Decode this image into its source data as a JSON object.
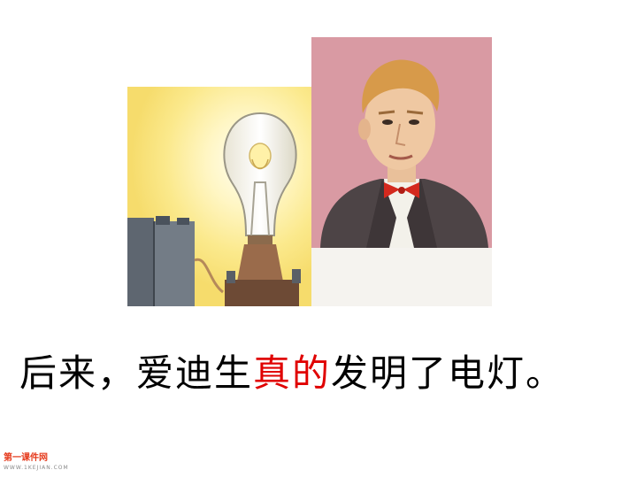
{
  "caption": {
    "before": "后来，爱迪生",
    "emphasis": "真的",
    "after": "发明了电灯。",
    "emphasis_color": "#e00000"
  },
  "watermark": {
    "logo": "第一课件网",
    "url": "WWW.1KEJIAN.COM"
  },
  "illustrations": {
    "left": "light-bulb-illustration",
    "right": "edison-portrait-illustration"
  }
}
